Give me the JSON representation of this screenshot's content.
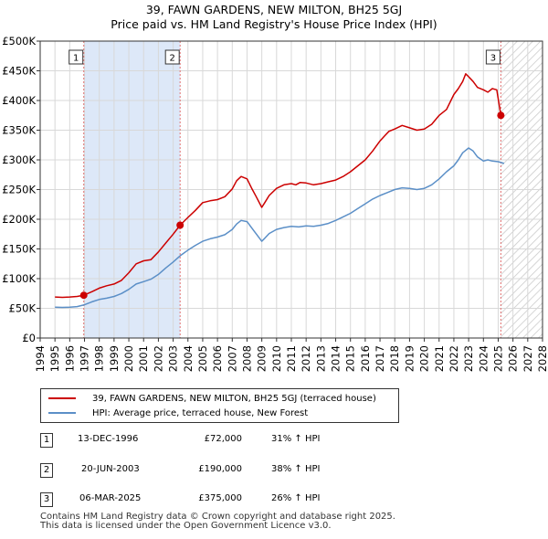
{
  "title_line1": "39, FAWN GARDENS, NEW MILTON, BH25 5GJ",
  "title_line2": "Price paid vs. HM Land Registry's House Price Index (HPI)",
  "colors": {
    "property": "#cc0000",
    "hpi": "#5b8fc7",
    "shade": "#dde8f8",
    "vline": "#e07070",
    "grid": "#d8d8d8"
  },
  "legend": {
    "property_label": "39, FAWN GARDENS, NEW MILTON, BH25 5GJ (terraced house)",
    "hpi_label": "HPI: Average price, terraced house, New Forest"
  },
  "sales": [
    {
      "num": "1",
      "date": "13-DEC-1996",
      "price": "£72,000",
      "hpi": "31% ↑ HPI"
    },
    {
      "num": "2",
      "date": "20-JUN-2003",
      "price": "£190,000",
      "hpi": "38% ↑ HPI"
    },
    {
      "num": "3",
      "date": "06-MAR-2025",
      "price": "£375,000",
      "hpi": "26% ↑ HPI"
    }
  ],
  "footer_line1": "Contains HM Land Registry data © Crown copyright and database right 2025.",
  "footer_line2": "This data is licensed under the Open Government Licence v3.0.",
  "chart_data": {
    "type": "line",
    "title": "39, FAWN GARDENS, NEW MILTON, BH25 5GJ — Price paid vs. HM Land Registry's House Price Index (HPI)",
    "xlabel": "",
    "ylabel": "",
    "xlim": [
      1994,
      2028
    ],
    "ylim": [
      0,
      500000
    ],
    "x_ticks": [
      1994,
      1995,
      1996,
      1997,
      1998,
      1999,
      2000,
      2001,
      2002,
      2003,
      2004,
      2005,
      2006,
      2007,
      2008,
      2009,
      2010,
      2011,
      2012,
      2013,
      2014,
      2015,
      2016,
      2017,
      2018,
      2019,
      2020,
      2021,
      2022,
      2023,
      2024,
      2025,
      2026,
      2027,
      2028
    ],
    "y_ticks": [
      0,
      50000,
      100000,
      150000,
      200000,
      250000,
      300000,
      350000,
      400000,
      450000,
      500000
    ],
    "y_tick_labels": [
      "£0",
      "£50K",
      "£100K",
      "£150K",
      "£200K",
      "£250K",
      "£300K",
      "£350K",
      "£400K",
      "£450K",
      "£500K"
    ],
    "grid": true,
    "shaded_span": [
      1996.95,
      2003.47
    ],
    "hatched_after": 2025.18,
    "sale_markers": [
      {
        "label": "1",
        "x": 1996.95,
        "y": 72000
      },
      {
        "label": "2",
        "x": 2003.47,
        "y": 190000
      },
      {
        "label": "3",
        "x": 2025.18,
        "y": 375000
      }
    ],
    "series": [
      {
        "name": "39, FAWN GARDENS, NEW MILTON, BH25 5GJ (terraced house)",
        "x": [
          1995,
          1995.5,
          1996,
          1996.5,
          1996.95,
          1997.5,
          1998,
          1998.5,
          1999,
          1999.5,
          2000,
          2000.5,
          2001,
          2001.5,
          2002,
          2002.5,
          2003,
          2003.47,
          2004,
          2004.5,
          2005,
          2005.5,
          2006,
          2006.5,
          2007,
          2007.3,
          2007.6,
          2008,
          2008.3,
          2008.6,
          2009,
          2009.2,
          2009.5,
          2010,
          2010.5,
          2011,
          2011.3,
          2011.6,
          2012,
          2012.5,
          2013,
          2013.5,
          2014,
          2014.5,
          2015,
          2015.5,
          2016,
          2016.5,
          2017,
          2017.3,
          2017.6,
          2018,
          2018.5,
          2019,
          2019.5,
          2020,
          2020.5,
          2021,
          2021.5,
          2022,
          2022.3,
          2022.6,
          2022.8,
          2023,
          2023.3,
          2023.6,
          2024,
          2024.3,
          2024.6,
          2024.9,
          2025.18,
          2025.4
        ],
        "values": [
          69000,
          68500,
          69000,
          70000,
          72000,
          78000,
          84000,
          88000,
          91000,
          97000,
          110000,
          125000,
          130000,
          132000,
          145000,
          160000,
          175000,
          190000,
          203000,
          215000,
          228000,
          231000,
          233000,
          238000,
          251000,
          265000,
          272000,
          268000,
          253000,
          239000,
          220000,
          228000,
          240000,
          252000,
          258000,
          260000,
          258000,
          262000,
          261000,
          258000,
          260000,
          263000,
          266000,
          272000,
          280000,
          290000,
          300000,
          315000,
          332000,
          340000,
          348000,
          352000,
          358000,
          354000,
          350000,
          352000,
          360000,
          375000,
          385000,
          410000,
          420000,
          432000,
          445000,
          440000,
          432000,
          422000,
          418000,
          414000,
          420000,
          418000,
          375000,
          374000
        ]
      },
      {
        "name": "HPI: Average price, terraced house, New Forest",
        "x": [
          1995,
          1995.5,
          1996,
          1996.5,
          1997,
          1997.5,
          1998,
          1998.5,
          1999,
          1999.5,
          2000,
          2000.5,
          2001,
          2001.5,
          2002,
          2002.5,
          2003,
          2003.5,
          2004,
          2004.5,
          2005,
          2005.5,
          2006,
          2006.5,
          2007,
          2007.3,
          2007.6,
          2008,
          2008.3,
          2008.6,
          2009,
          2009.2,
          2009.5,
          2010,
          2010.5,
          2011,
          2011.5,
          2012,
          2012.5,
          2013,
          2013.5,
          2014,
          2014.5,
          2015,
          2015.5,
          2016,
          2016.5,
          2017,
          2017.5,
          2018,
          2018.5,
          2019,
          2019.5,
          2020,
          2020.5,
          2021,
          2021.5,
          2022,
          2022.3,
          2022.6,
          2023,
          2023.3,
          2023.6,
          2024,
          2024.3,
          2024.6,
          2025,
          2025.4
        ],
        "values": [
          52000,
          51500,
          52000,
          53000,
          56000,
          61000,
          65000,
          67000,
          70000,
          75000,
          82000,
          91000,
          95000,
          99000,
          107000,
          118000,
          128000,
          139000,
          148000,
          156000,
          163000,
          167000,
          170000,
          174000,
          183000,
          192000,
          198000,
          196000,
          186000,
          176000,
          163000,
          168000,
          176000,
          183000,
          186000,
          188000,
          187000,
          189000,
          188000,
          190000,
          193000,
          198000,
          204000,
          210000,
          218000,
          226000,
          234000,
          240000,
          245000,
          250000,
          253000,
          252000,
          250000,
          252000,
          258000,
          268000,
          280000,
          290000,
          300000,
          312000,
          320000,
          315000,
          305000,
          298000,
          300000,
          298000,
          297000,
          294000
        ]
      }
    ]
  }
}
